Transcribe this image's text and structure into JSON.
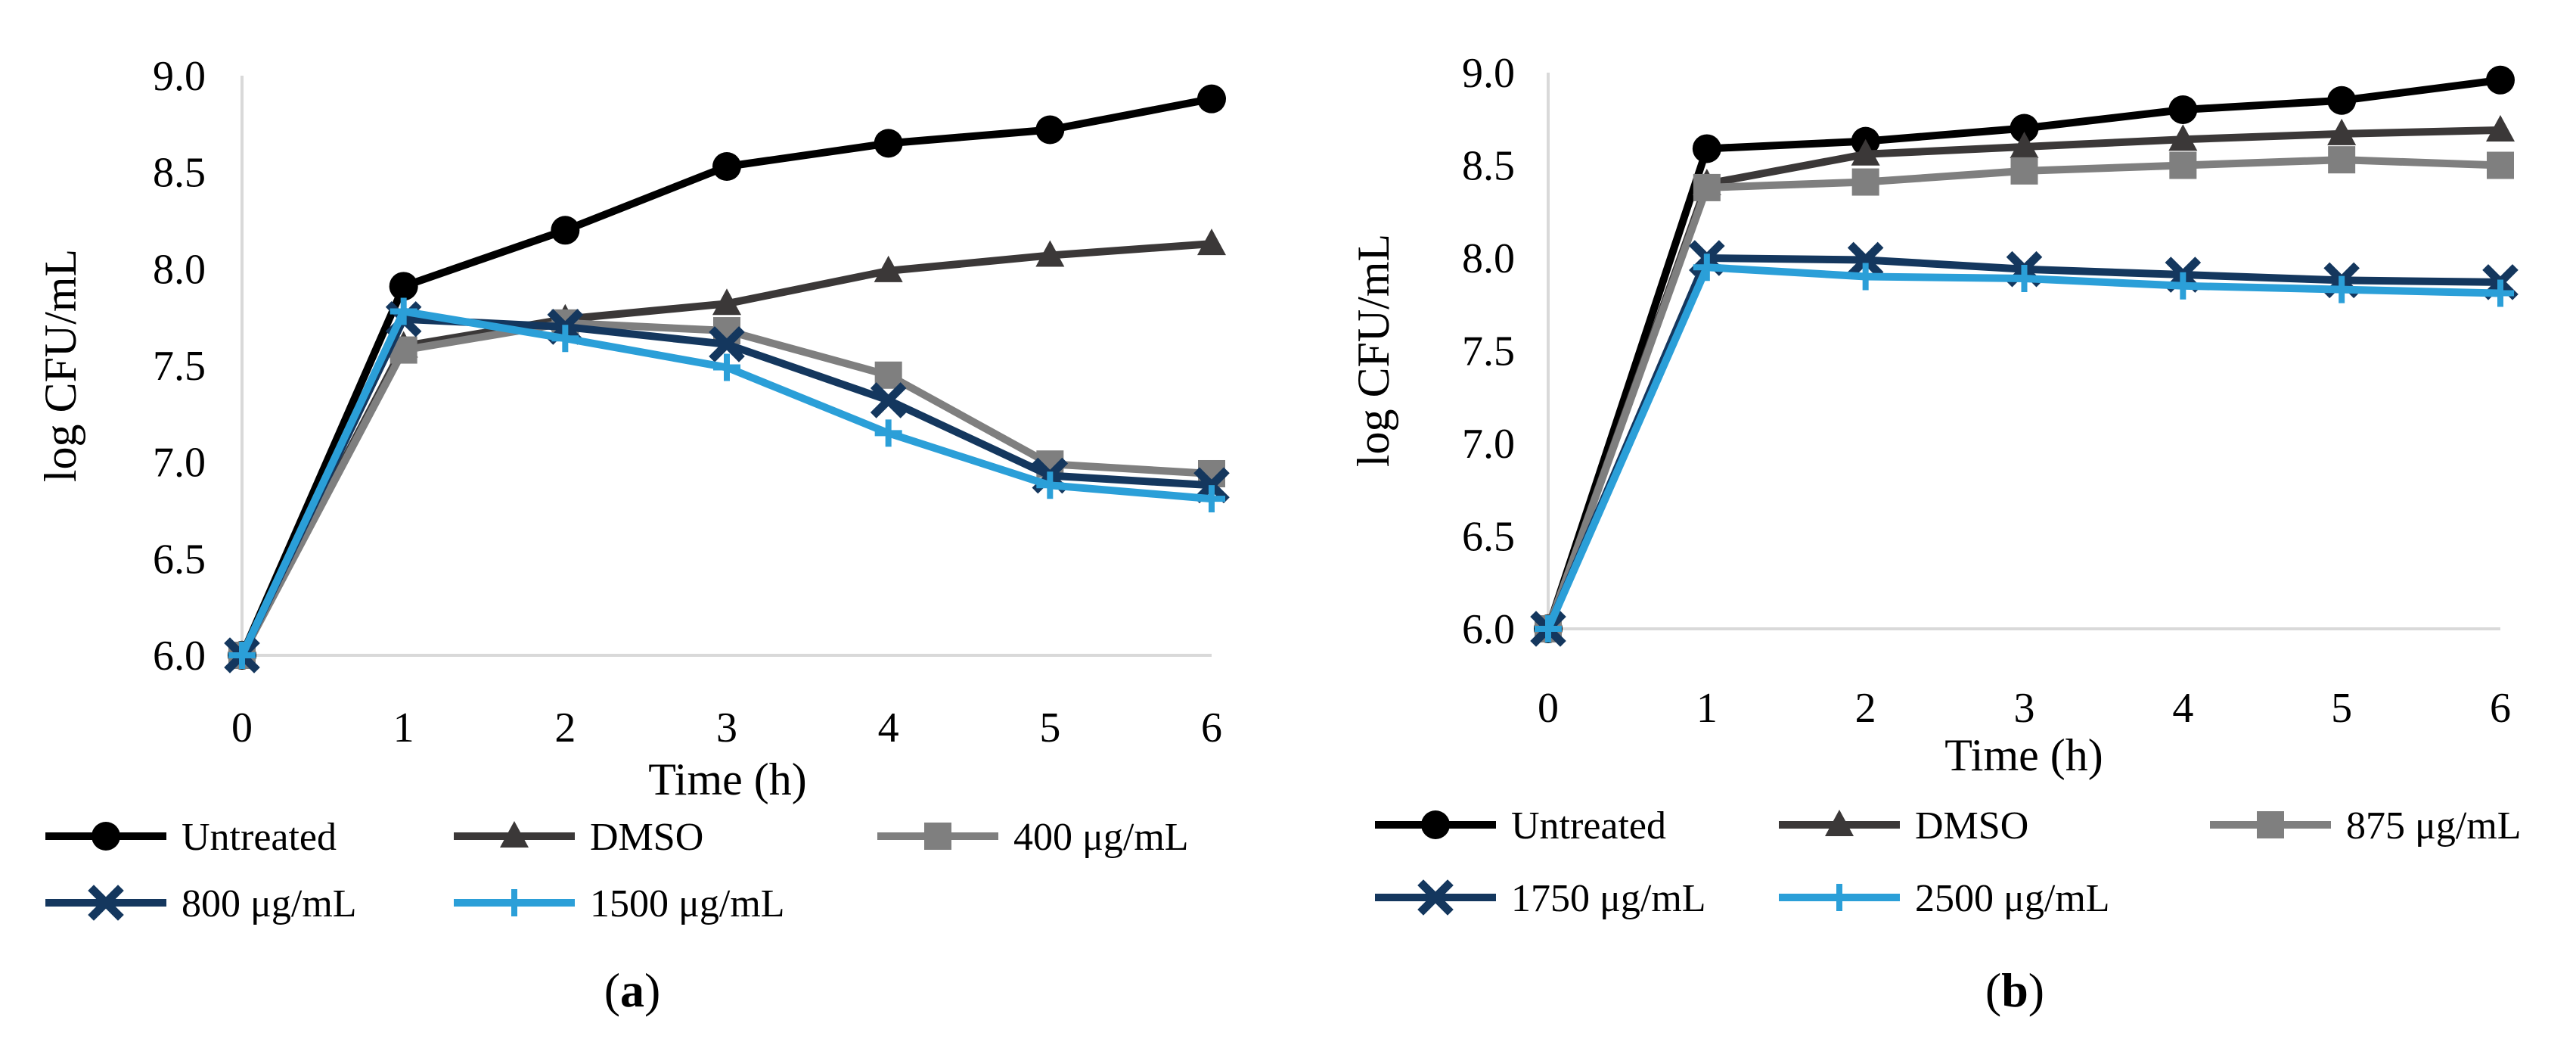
{
  "chart_data": [
    {
      "type": "line",
      "panel_label_open": "(",
      "panel_label_letter": "a",
      "panel_label_close": ")",
      "xlabel": "Time (h)",
      "ylabel": "log CFU/mL",
      "x": [
        0,
        1,
        2,
        3,
        4,
        5,
        6
      ],
      "xticks": [
        "0",
        "1",
        "2",
        "3",
        "4",
        "5",
        "6"
      ],
      "ylim": [
        6.0,
        9.0
      ],
      "yticks": [
        "6.0",
        "6.5",
        "7.0",
        "7.5",
        "8.0",
        "8.5",
        "9.0"
      ],
      "grid": false,
      "legend_position": "bottom",
      "series": [
        {
          "name": "Untreated",
          "marker": "circle",
          "color": "#000000",
          "values": [
            6.0,
            7.91,
            8.2,
            8.53,
            8.65,
            8.72,
            8.88
          ]
        },
        {
          "name": "DMSO",
          "marker": "triangle",
          "color": "#3b3838",
          "values": [
            6.0,
            7.6,
            7.74,
            7.82,
            7.99,
            8.07,
            8.13
          ]
        },
        {
          "name": "400 μg/mL",
          "marker": "square",
          "color": "#7f7f7f",
          "values": [
            6.0,
            7.58,
            7.72,
            7.68,
            7.45,
            6.99,
            6.94
          ]
        },
        {
          "name": "800 μg/mL",
          "marker": "x",
          "color": "#14375e",
          "values": [
            6.0,
            7.74,
            7.7,
            7.61,
            7.32,
            6.93,
            6.88
          ]
        },
        {
          "name": "1500 μg/mL",
          "marker": "plus",
          "color": "#2b9fd8",
          "values": [
            6.0,
            7.78,
            7.64,
            7.49,
            7.15,
            6.88,
            6.81
          ]
        }
      ]
    },
    {
      "type": "line",
      "panel_label_open": "(",
      "panel_label_letter": "b",
      "panel_label_close": ")",
      "xlabel": "Time (h)",
      "ylabel": "log CFU/mL",
      "x": [
        0,
        1,
        2,
        3,
        4,
        5,
        6
      ],
      "xticks": [
        "0",
        "1",
        "2",
        "3",
        "4",
        "5",
        "6"
      ],
      "ylim": [
        6.0,
        9.0
      ],
      "yticks": [
        "6.0",
        "6.5",
        "7.0",
        "7.5",
        "8.0",
        "8.5",
        "9.0"
      ],
      "grid": false,
      "legend_position": "bottom",
      "series": [
        {
          "name": "Untreated",
          "marker": "circle",
          "color": "#000000",
          "values": [
            6.0,
            8.59,
            8.63,
            8.7,
            8.8,
            8.85,
            8.96
          ]
        },
        {
          "name": "DMSO",
          "marker": "triangle",
          "color": "#3b3838",
          "values": [
            6.0,
            8.4,
            8.56,
            8.6,
            8.64,
            8.67,
            8.69
          ]
        },
        {
          "name": "875 μg/mL",
          "marker": "square",
          "color": "#7f7f7f",
          "values": [
            6.0,
            8.38,
            8.41,
            8.47,
            8.5,
            8.53,
            8.5
          ]
        },
        {
          "name": "1750 μg/mL",
          "marker": "x",
          "color": "#14375e",
          "values": [
            6.0,
            8.0,
            7.99,
            7.94,
            7.91,
            7.88,
            7.87
          ]
        },
        {
          "name": "2500 μg/mL",
          "marker": "plus",
          "color": "#2b9fd8",
          "values": [
            6.0,
            7.95,
            7.9,
            7.89,
            7.85,
            7.83,
            7.81
          ]
        }
      ]
    }
  ]
}
